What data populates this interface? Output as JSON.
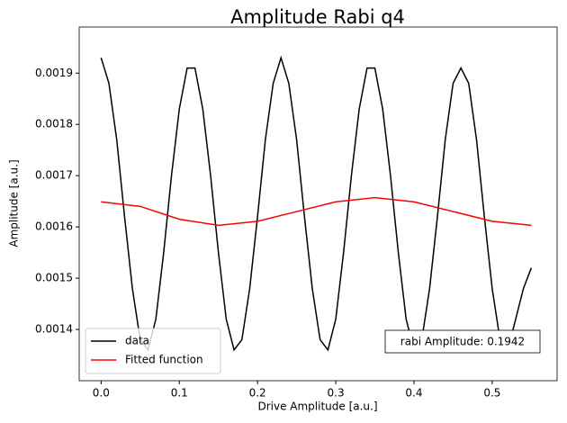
{
  "chart_data": {
    "type": "line",
    "title": "Amplitude Rabi q4",
    "xlabel": "Drive Amplitude [a.u.]",
    "ylabel": "Amplitude [a.u.]",
    "annotation": "rabi Amplitude: 0.1942",
    "legend": "lower left",
    "xlim": [
      -0.028,
      0.583
    ],
    "ylim": [
      0.0013,
      0.00199
    ],
    "xticks": [
      {
        "value": 0,
        "label": "0.0"
      },
      0.1,
      0.2,
      0.3,
      0.4,
      0.5
    ],
    "yticks": [
      0.0014,
      0.0015,
      0.0016,
      0.0017,
      0.0018,
      0.0019
    ],
    "series": [
      {
        "name": "data",
        "color": "#000000",
        "x": [
          0,
          0.01,
          0.02,
          0.03,
          0.04,
          0.05,
          0.06,
          0.07,
          0.08,
          0.09,
          0.1,
          0.11,
          0.12,
          0.13,
          0.14,
          0.15,
          0.16,
          0.17,
          0.18,
          0.19,
          0.2,
          0.21,
          0.22,
          0.23,
          0.24,
          0.25,
          0.26,
          0.27,
          0.28,
          0.29,
          0.3,
          0.31,
          0.32,
          0.33,
          0.34,
          0.35,
          0.36,
          0.37,
          0.38,
          0.39,
          0.4,
          0.41,
          0.42,
          0.43,
          0.44,
          0.45,
          0.46,
          0.47,
          0.48,
          0.49,
          0.5,
          0.51,
          0.52,
          0.53,
          0.54,
          0.55
        ],
        "values": [
          0.00193,
          0.00188,
          0.00177,
          0.00162,
          0.00148,
          0.00138,
          0.00136,
          0.00142,
          0.00155,
          0.0017,
          0.00183,
          0.00191,
          0.00191,
          0.00183,
          0.0017,
          0.00155,
          0.00142,
          0.00136,
          0.00138,
          0.00148,
          0.00162,
          0.00177,
          0.00188,
          0.00193,
          0.00188,
          0.00177,
          0.00162,
          0.00148,
          0.00138,
          0.00136,
          0.00142,
          0.00155,
          0.0017,
          0.00183,
          0.00191,
          0.00191,
          0.00183,
          0.0017,
          0.00155,
          0.00142,
          0.00136,
          0.00138,
          0.00148,
          0.00162,
          0.00177,
          0.00188,
          0.00191,
          0.00188,
          0.00177,
          0.00162,
          0.00148,
          0.00138,
          0.00136,
          0.00142,
          0.00148,
          0.00152
        ]
      },
      {
        "name": "Fitted function",
        "color": "#ff0000",
        "x": [
          0,
          0.05,
          0.1,
          0.15,
          0.2,
          0.25,
          0.3,
          0.35,
          0.4,
          0.45,
          0.5,
          0.55
        ],
        "values": [
          0.001649,
          0.00164,
          0.001615,
          0.001603,
          0.001611,
          0.00163,
          0.001649,
          0.001657,
          0.001649,
          0.00163,
          0.001611,
          0.001603
        ]
      }
    ]
  }
}
